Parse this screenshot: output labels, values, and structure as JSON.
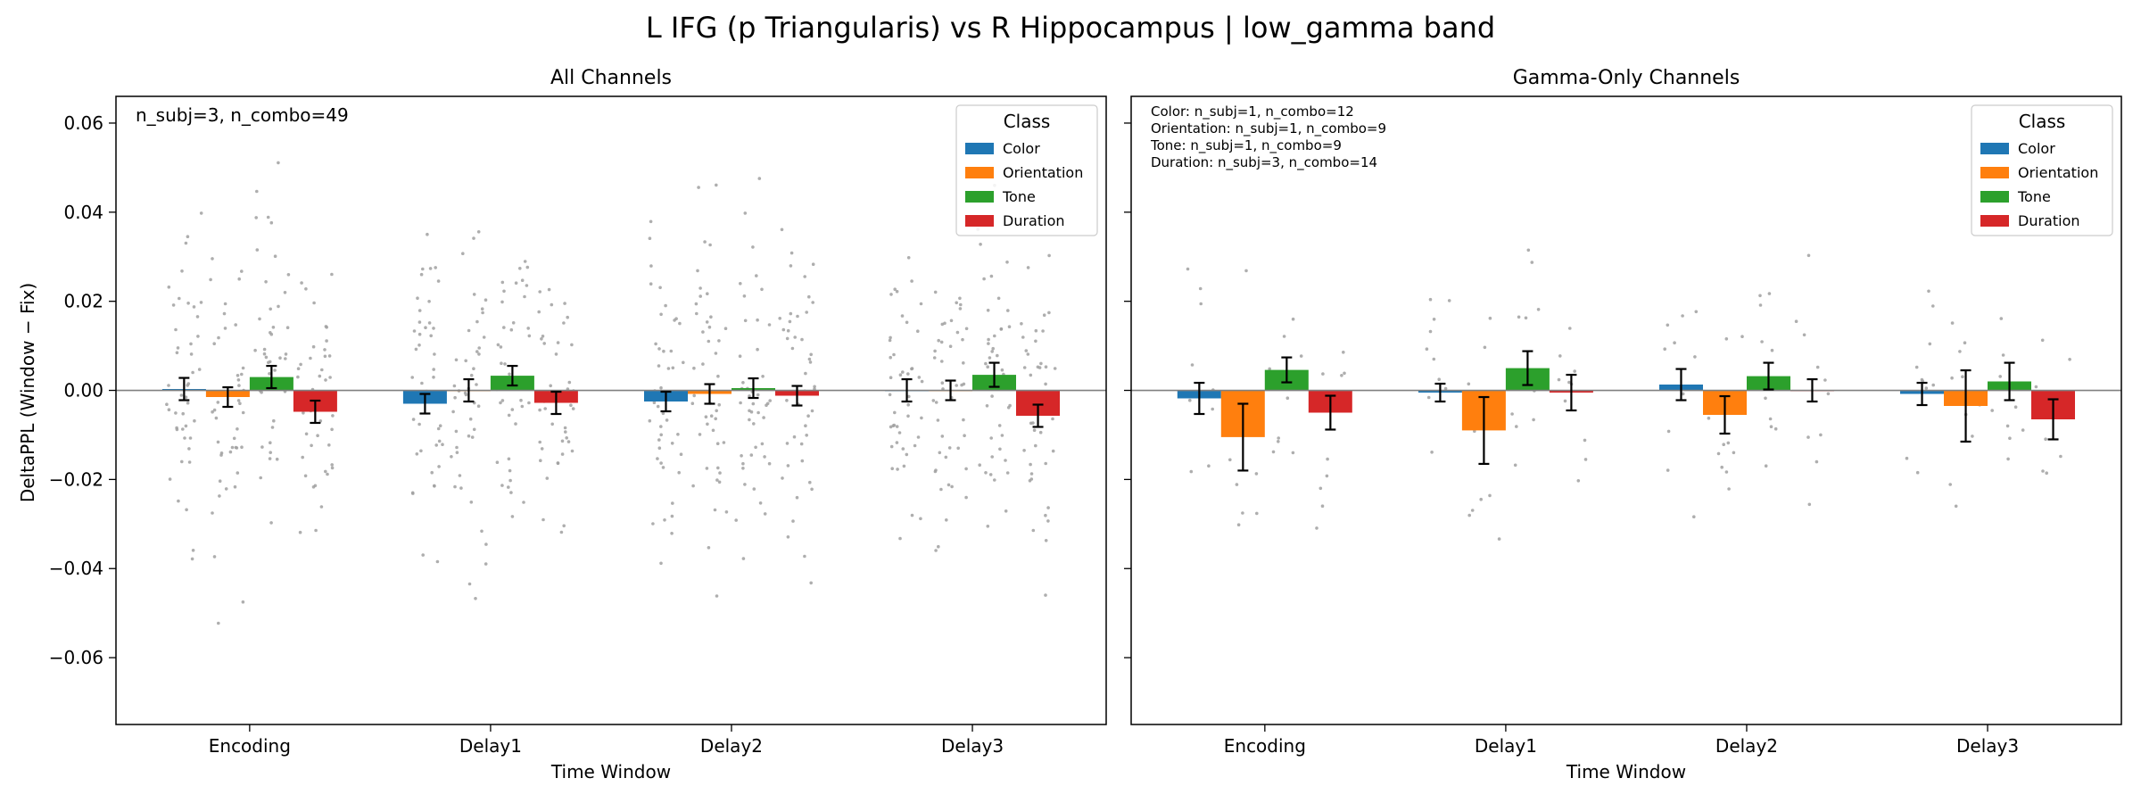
{
  "figure": {
    "title": "L IFG (p Triangularis) vs R Hippocampus  |  low_gamma band",
    "ylabel": "DeltaPPL (Window − Fix)",
    "yticks": [
      -0.06,
      -0.04,
      -0.02,
      0.0,
      0.02,
      0.04,
      0.06
    ],
    "ylim": [
      -0.075,
      0.066
    ]
  },
  "colors": {
    "Color": "#1f77b4",
    "Orientation": "#ff7f0e",
    "Tone": "#2ca02c",
    "Duration": "#d62728",
    "scatter": "#a0a0a0",
    "zero_line": "#808080"
  },
  "chart_data": [
    {
      "type": "bar",
      "title": "All Channels",
      "xlabel": "Time Window",
      "ylabel": "DeltaPPL (Window − Fix)",
      "ylim": [
        -0.075,
        0.066
      ],
      "grid": false,
      "legend": {
        "title": "Class",
        "placement": "top-right",
        "entries": [
          "Color",
          "Orientation",
          "Tone",
          "Duration"
        ]
      },
      "annotations": [
        "n_subj=3, n_combo=49"
      ],
      "categories": [
        "Encoding",
        "Delay1",
        "Delay2",
        "Delay3"
      ],
      "series": [
        {
          "name": "Color",
          "values": [
            0.0003,
            -0.003,
            -0.0025,
            0.0
          ],
          "errors": [
            0.0025,
            0.0022,
            0.0022,
            0.0025
          ]
        },
        {
          "name": "Orientation",
          "values": [
            -0.0015,
            0.0,
            -0.0008,
            0.0
          ],
          "errors": [
            0.0022,
            0.0025,
            0.0022,
            0.0022
          ]
        },
        {
          "name": "Tone",
          "values": [
            0.003,
            0.0033,
            0.0005,
            0.0035
          ],
          "errors": [
            0.0025,
            0.0022,
            0.0022,
            0.0027
          ]
        },
        {
          "name": "Duration",
          "values": [
            -0.0048,
            -0.0028,
            -0.0012,
            -0.0057
          ],
          "errors": [
            0.0025,
            0.0025,
            0.0022,
            0.0025
          ]
        }
      ]
    },
    {
      "type": "bar",
      "title": "Gamma-Only Channels",
      "xlabel": "Time Window",
      "ylim": [
        -0.075,
        0.066
      ],
      "grid": false,
      "legend": {
        "title": "Class",
        "placement": "top-right",
        "entries": [
          "Color",
          "Orientation",
          "Tone",
          "Duration"
        ]
      },
      "annotations": [
        "Color: n_subj=1, n_combo=12",
        "Orientation: n_subj=1, n_combo=9",
        "Tone: n_subj=1, n_combo=9",
        "Duration: n_subj=3, n_combo=14"
      ],
      "categories": [
        "Encoding",
        "Delay1",
        "Delay2",
        "Delay3"
      ],
      "series": [
        {
          "name": "Color",
          "values": [
            -0.0018,
            -0.0005,
            0.0013,
            -0.0008
          ],
          "errors": [
            0.0035,
            0.002,
            0.0035,
            0.0025
          ]
        },
        {
          "name": "Orientation",
          "values": [
            -0.0105,
            -0.009,
            -0.0055,
            -0.0035
          ],
          "errors": [
            0.0075,
            0.0075,
            0.0042,
            0.008
          ]
        },
        {
          "name": "Tone",
          "values": [
            0.0046,
            0.005,
            0.0032,
            0.002
          ],
          "errors": [
            0.0028,
            0.0038,
            0.003,
            0.0042
          ]
        },
        {
          "name": "Duration",
          "values": [
            -0.005,
            -0.0005,
            0.0,
            -0.0065
          ],
          "errors": [
            0.0038,
            0.004,
            0.0025,
            0.0045
          ]
        }
      ]
    }
  ]
}
